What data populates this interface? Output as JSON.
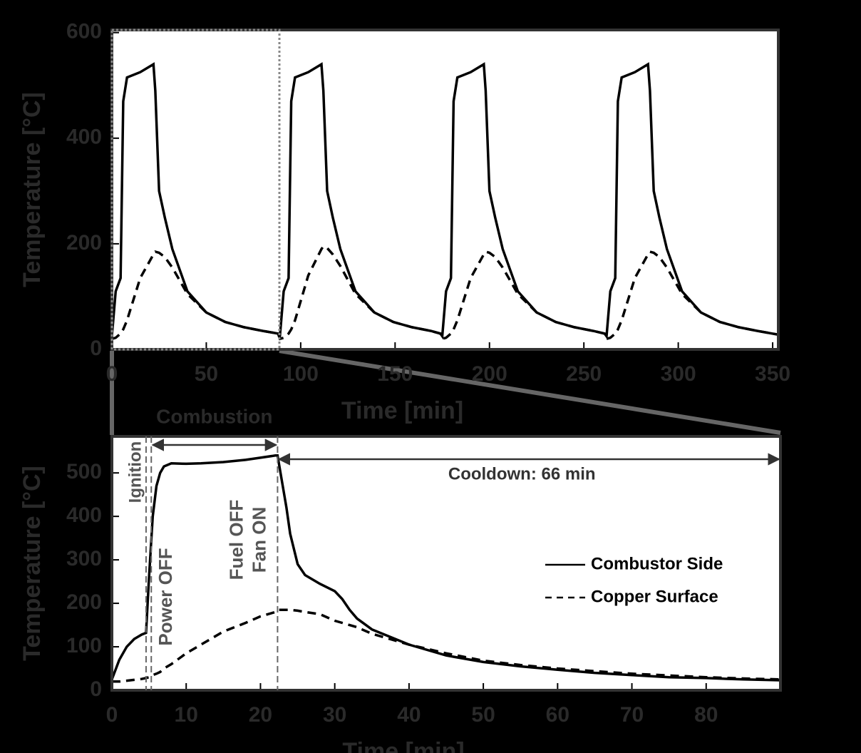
{
  "chart_data": [
    {
      "type": "line",
      "ylabel": "Temperature [°C]",
      "xlabel": "Time [min]",
      "xlim": [
        0,
        353
      ],
      "xticks": [
        0,
        50,
        100,
        150,
        200,
        250,
        300,
        350
      ],
      "ylim": [
        0,
        605
      ],
      "yticks": [
        0,
        200,
        400,
        600
      ],
      "x": [
        0,
        2,
        4.6,
        6,
        8,
        15,
        22,
        23,
        25,
        28,
        32,
        40,
        50,
        60,
        70,
        80,
        88,
        89,
        91,
        93.6,
        95,
        97,
        104,
        111,
        112,
        114,
        117,
        121,
        129,
        139,
        149,
        159,
        169,
        174,
        175,
        177,
        179.6,
        181,
        183,
        190,
        197,
        198,
        200,
        203,
        207,
        215,
        225,
        235,
        245,
        255,
        261,
        262,
        264,
        266.6,
        268,
        270,
        277,
        284,
        285,
        287,
        290,
        294,
        302,
        312,
        322,
        332,
        342,
        353
      ],
      "series": [
        {
          "name": "Combustor Side",
          "color": "#000000",
          "line_style": "solid",
          "values": [
            25,
            110,
            135,
            470,
            515,
            525,
            540,
            490,
            300,
            250,
            190,
            110,
            70,
            52,
            42,
            35,
            30,
            25,
            110,
            135,
            470,
            515,
            525,
            540,
            490,
            300,
            250,
            190,
            110,
            70,
            52,
            42,
            35,
            30,
            25,
            110,
            135,
            470,
            515,
            525,
            540,
            490,
            300,
            250,
            190,
            110,
            70,
            52,
            42,
            35,
            30,
            25,
            110,
            135,
            470,
            515,
            525,
            540,
            490,
            300,
            250,
            190,
            110,
            70,
            52,
            42,
            35,
            28
          ]
        },
        {
          "name": "Copper Surface",
          "color": "#000000",
          "line_style": "dashed",
          "values": [
            20,
            22,
            30,
            38,
            55,
            135,
            180,
            185,
            183,
            175,
            155,
            105,
            70,
            52,
            42,
            35,
            30,
            20,
            22,
            30,
            38,
            55,
            140,
            190,
            195,
            192,
            180,
            158,
            105,
            70,
            52,
            42,
            35,
            30,
            20,
            22,
            30,
            38,
            55,
            135,
            180,
            185,
            183,
            175,
            155,
            105,
            70,
            52,
            42,
            35,
            30,
            20,
            22,
            30,
            38,
            55,
            135,
            180,
            185,
            183,
            175,
            155,
            105,
            70,
            52,
            42,
            35,
            28
          ]
        }
      ]
    },
    {
      "type": "line",
      "ylabel": "Temperature [°C]",
      "xlabel": "Time [min]",
      "xlim": [
        0,
        90
      ],
      "xticks": [
        0,
        10,
        20,
        30,
        40,
        50,
        60,
        70,
        80
      ],
      "ylim": [
        0,
        584
      ],
      "yticks": [
        0,
        100,
        200,
        300,
        400,
        500
      ],
      "legend": "right",
      "event_lines": [
        4.6,
        5.3,
        22.3
      ],
      "annotations": [
        "Combustion",
        "Ignition",
        "Power OFF",
        "Fuel OFF",
        "Fan ON",
        "Cooldown: 66 min"
      ],
      "x": [
        0,
        1,
        2,
        3,
        4,
        4.6,
        5,
        5.5,
        6,
        6.5,
        7,
        8,
        10,
        12,
        15,
        18,
        20,
        22,
        22.3,
        23,
        23.5,
        24,
        25,
        26,
        28,
        30,
        31,
        32,
        33,
        35,
        40,
        45,
        50,
        55,
        60,
        65,
        70,
        75,
        80,
        85,
        90
      ],
      "series": [
        {
          "name": "Combustor Side",
          "color": "#000000",
          "line_style": "solid",
          "values": [
            25,
            70,
            100,
            118,
            128,
            132,
            260,
            400,
            470,
            500,
            515,
            522,
            521,
            522,
            525,
            530,
            535,
            540,
            540,
            470,
            420,
            360,
            290,
            265,
            245,
            228,
            210,
            185,
            165,
            140,
            105,
            80,
            65,
            55,
            47,
            40,
            35,
            30,
            28,
            25,
            23
          ]
        },
        {
          "name": "Copper Surface",
          "color": "#000000",
          "line_style": "dashed",
          "values": [
            20,
            20,
            22,
            24,
            26,
            28,
            30,
            35,
            38,
            42,
            50,
            60,
            85,
            105,
            135,
            155,
            170,
            180,
            185,
            185,
            185,
            185,
            183,
            180,
            175,
            160,
            155,
            150,
            145,
            130,
            105,
            85,
            68,
            58,
            50,
            44,
            38,
            34,
            30,
            27,
            25
          ]
        }
      ]
    }
  ]
}
